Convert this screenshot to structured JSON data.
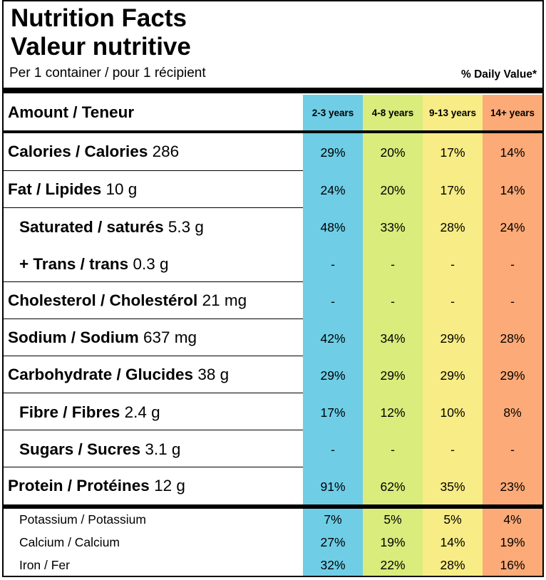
{
  "title_en": "Nutrition Facts",
  "title_fr": "Valeur nutritive",
  "serving": "Per 1 container / pour 1 récipient",
  "daily_value_label": "% Daily Value*",
  "amount_header": "Amount / Teneur",
  "age_groups": [
    {
      "label": "2-3 years",
      "color": "#6fcde6"
    },
    {
      "label": "4-8 years",
      "color": "#d9ec7c"
    },
    {
      "label": "9-13 years",
      "color": "#f7ec85"
    },
    {
      "label": "14+ years",
      "color": "#fcaa77"
    }
  ],
  "rows": [
    {
      "name": "Calories / Calories",
      "amount": "286",
      "values": [
        "29%",
        "20%",
        "17%",
        "14%"
      ]
    },
    {
      "name": "Fat / Lipides",
      "amount": "10 g",
      "values": [
        "24%",
        "20%",
        "17%",
        "14%"
      ]
    },
    {
      "name": "Saturated / saturés",
      "amount": "5.3 g",
      "values": [
        "48%",
        "33%",
        "28%",
        "24%"
      ]
    },
    {
      "name": "+ Trans / trans",
      "amount": "0.3 g",
      "values": [
        "-",
        "-",
        "-",
        "-"
      ]
    },
    {
      "name": "Cholesterol / Cholestérol",
      "amount": "21 mg",
      "values": [
        "-",
        "-",
        "-",
        "-"
      ]
    },
    {
      "name": "Sodium / Sodium",
      "amount": "637 mg",
      "values": [
        "42%",
        "34%",
        "29%",
        "28%"
      ]
    },
    {
      "name": "Carbohydrate / Glucides",
      "amount": "38 g",
      "values": [
        "29%",
        "29%",
        "29%",
        "29%"
      ]
    },
    {
      "name": "Fibre / Fibres",
      "amount": "2.4 g",
      "values": [
        "17%",
        "12%",
        "10%",
        "8%"
      ]
    },
    {
      "name": "Sugars / Sucres",
      "amount": "3.1 g",
      "values": [
        "-",
        "-",
        "-",
        "-"
      ]
    },
    {
      "name": "Protein / Protéines",
      "amount": "12 g",
      "values": [
        "91%",
        "62%",
        "35%",
        "23%"
      ]
    }
  ],
  "minerals": [
    {
      "name": "Potassium / Potassium",
      "values": [
        "7%",
        "5%",
        "5%",
        "4%"
      ]
    },
    {
      "name": "Calcium / Calcium",
      "values": [
        "27%",
        "19%",
        "14%",
        "19%"
      ]
    },
    {
      "name": "Iron / Fer",
      "values": [
        "32%",
        "22%",
        "28%",
        "16%"
      ]
    }
  ]
}
